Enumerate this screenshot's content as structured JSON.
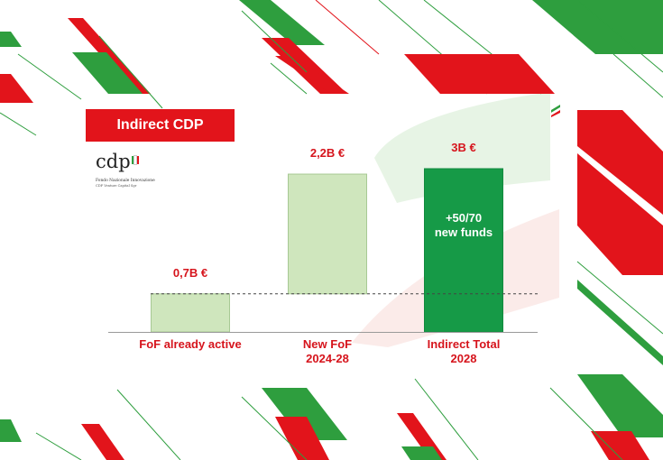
{
  "header": {
    "title": "Indirect CDP"
  },
  "logo": {
    "name": "cdp",
    "line1": "Fondo Nazionale Innovazione",
    "line2": "CDP Venture Capital Sgr"
  },
  "colors": {
    "red": "#e2141b",
    "green": "#2e9e3e",
    "dark_green": "#169a47",
    "light_green": "#cfe6bd",
    "label_red": "#d6141c"
  },
  "chart_data": {
    "type": "bar",
    "categories": [
      "FoF already active",
      "New FoF\n2024-28",
      "Indirect Total\n2028"
    ],
    "values": [
      0.7,
      2.2,
      3.0
    ],
    "bases": [
      0,
      0.7,
      0
    ],
    "value_labels": [
      "0,7B €",
      "2,2B €",
      "3B €"
    ],
    "inner_label": [
      "",
      "",
      "+50/70\nnew funds"
    ],
    "ylim": [
      0,
      3.0
    ],
    "bar_styles": [
      "light",
      "light",
      "dark"
    ],
    "reference_line": 0.7
  }
}
